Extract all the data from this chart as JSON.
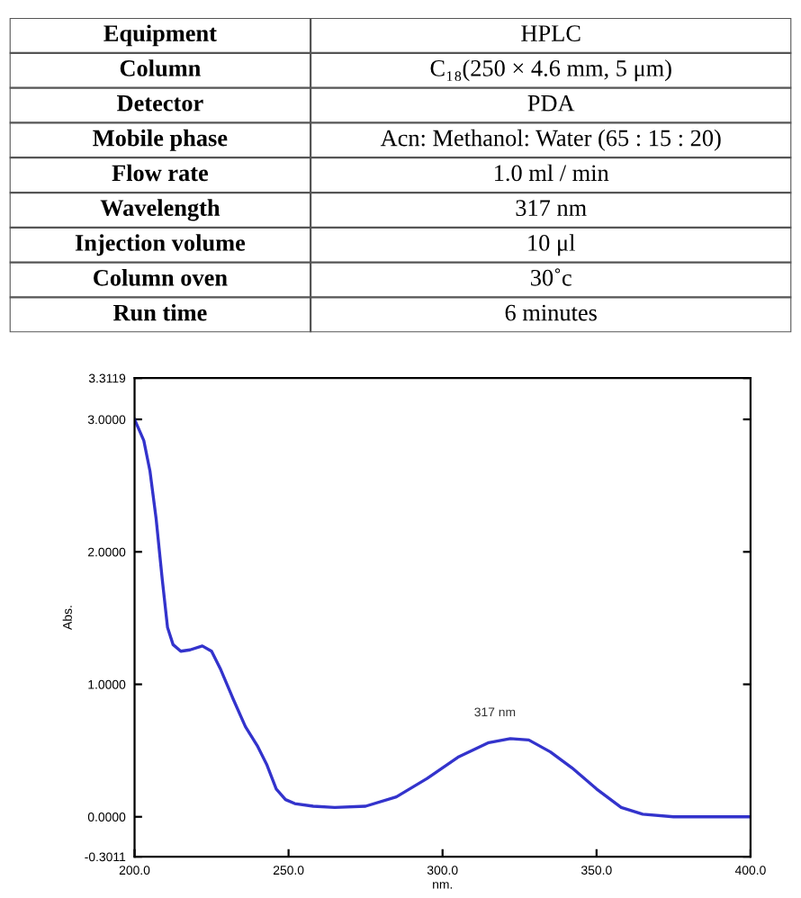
{
  "chart_data": [
    {
      "type": "other",
      "annotations": [
        "Equipment",
        "HPLC",
        "Column",
        "C₁₈(250 × 4.6 mm, 5 μm)",
        "Detector",
        "PDA",
        "Mobile phase",
        "Acn: Methanol: Water (65 : 15 : 20)",
        "Flow rate",
        "1.0 ml / min",
        "Wavelength",
        "317 nm",
        "Injection volume",
        "10 μl",
        "Column oven",
        "30˚c",
        "Run time",
        "6 minutes"
      ]
    },
    {
      "type": "line",
      "xlabel": "nm.",
      "ylabel": "Abs.",
      "x": [
        200,
        203,
        205,
        207,
        209,
        210.7,
        212.5,
        215,
        218,
        222,
        225,
        228,
        232,
        236,
        240,
        243,
        246,
        249,
        252,
        258,
        265,
        275,
        285,
        295,
        305,
        315,
        322,
        328,
        335,
        342,
        350,
        358,
        365,
        375,
        400
      ],
      "series": [
        {
          "color": "#3333cc",
          "values": [
            3.0,
            2.84,
            2.61,
            2.25,
            1.79,
            1.43,
            1.3,
            1.25,
            1.26,
            1.29,
            1.25,
            1.11,
            0.89,
            0.68,
            0.53,
            0.39,
            0.21,
            0.13,
            0.1,
            0.08,
            0.07,
            0.08,
            0.15,
            0.29,
            0.45,
            0.56,
            0.59,
            0.58,
            0.49,
            0.37,
            0.21,
            0.07,
            0.02,
            0.0,
            0.0
          ]
        }
      ],
      "annotations": [
        "317 nm"
      ],
      "xlim": [
        200,
        400
      ],
      "ylim": [
        -0.3011,
        3.3119
      ],
      "xticks": [
        {
          "value": 200,
          "label": "200.0"
        },
        {
          "value": 250,
          "label": "250.0"
        },
        {
          "value": 300,
          "label": "300.0"
        },
        {
          "value": 350,
          "label": "350.0"
        },
        {
          "value": 400,
          "label": "400.0"
        }
      ],
      "yticks": [
        {
          "value": -0.3011,
          "label": "-0.3011"
        },
        {
          "value": 0,
          "label": "0.0000"
        },
        {
          "value": 1,
          "label": "1.0000"
        },
        {
          "value": 2,
          "label": "2.0000"
        },
        {
          "value": 3,
          "label": "3.0000"
        },
        {
          "value": 3.3119,
          "label": "3.3119"
        }
      ],
      "grid": false,
      "legend": false
    }
  ]
}
